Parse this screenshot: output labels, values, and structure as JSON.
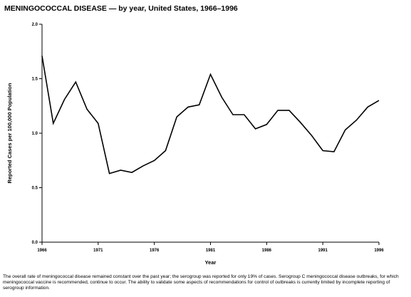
{
  "title": {
    "main": "MENINGOCOCCAL DISEASE",
    "rest": " — by year, United States, 1966–1996"
  },
  "footnote": "The overall rate of meningococcal disease remained constant over the past year; the serogroup was reported for only 19% of cases. Serogroup C meningococcal disease outbreaks, for which meningococcal vaccine is recommended, continue to occur. The ability to validate some aspects of recommendations for control of outbreaks is currently limited by incomplete reporting of serogroup information.",
  "chart_data": {
    "type": "line",
    "title": "MENINGOCOCCAL DISEASE — by year, United States, 1966–1996",
    "xlabel": "Year",
    "ylabel": "Reported Cases per 100,000 Population",
    "xlim": [
      1966,
      1996
    ],
    "ylim": [
      0.0,
      2.0
    ],
    "x_ticks": [
      "1966",
      "1971",
      "1976",
      "1981",
      "1986",
      "1991",
      "1996"
    ],
    "y_ticks": [
      "0.0",
      "0.5",
      "1.0",
      "1.5",
      "2.0"
    ],
    "grid": false,
    "series": [
      {
        "x": [
          1966,
          1967,
          1968,
          1969,
          1970,
          1971,
          1972,
          1973,
          1974,
          1975,
          1976,
          1977,
          1978,
          1979,
          1980,
          1981,
          1982,
          1983,
          1984,
          1985,
          1986,
          1987,
          1988,
          1989,
          1990,
          1991,
          1992,
          1993,
          1994,
          1995,
          1996
        ],
        "values": [
          1.71,
          1.09,
          1.31,
          1.47,
          1.22,
          1.09,
          0.63,
          0.66,
          0.64,
          0.7,
          0.75,
          0.84,
          1.15,
          1.24,
          1.26,
          1.54,
          1.33,
          1.17,
          1.17,
          1.04,
          1.08,
          1.21,
          1.21,
          1.1,
          0.98,
          0.84,
          0.83,
          1.03,
          1.12,
          1.24,
          1.3
        ]
      }
    ]
  }
}
